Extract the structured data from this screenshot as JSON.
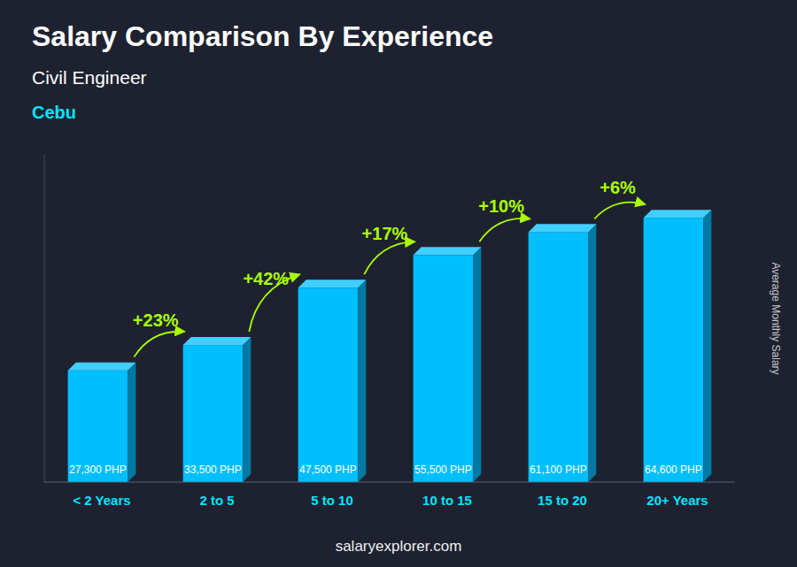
{
  "chart_data": {
    "type": "bar",
    "title": "Salary Comparison By Experience",
    "subtitles": [
      "Civil Engineer",
      "Cebu"
    ],
    "ylabel": "Average Monthly Salary",
    "watermark": "salaryexplorer.com",
    "categories": [
      "< 2 Years",
      "2 to 5",
      "5 to 10",
      "10 to 15",
      "15 to 20",
      "20+ Years"
    ],
    "values": [
      27300,
      33500,
      47500,
      55500,
      61100,
      64600
    ],
    "value_labels": [
      "27,300 PHP",
      "33,500 PHP",
      "47,500 PHP",
      "55,500 PHP",
      "61,100 PHP",
      "64,600 PHP"
    ],
    "data_labels": true,
    "changes": [
      23,
      42,
      17,
      10,
      6
    ],
    "change_labels": [
      "+23%",
      "+42%",
      "+17%",
      "+10%",
      "+6%"
    ],
    "color": "#00BFFF",
    "ylim": [
      0,
      80000
    ],
    "tick_labels": "x",
    "grid": false
  }
}
